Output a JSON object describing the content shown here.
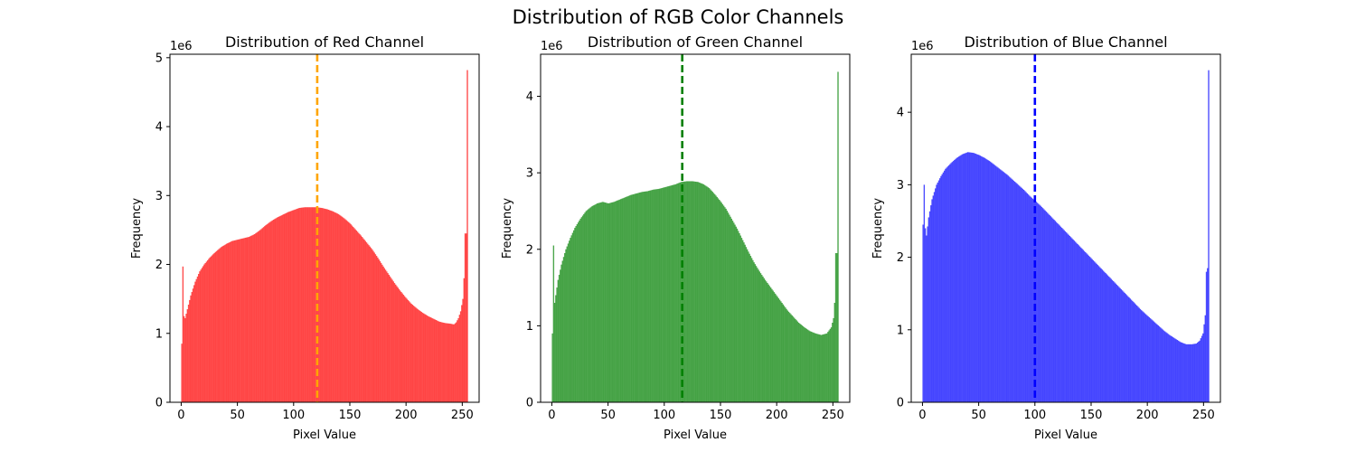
{
  "suptitle": "Distribution of RGB Color Channels",
  "chart_data": [
    {
      "type": "bar",
      "title": "Distribution of Red Channel",
      "xlabel": "Pixel Value",
      "ylabel": "Frequency",
      "y_scale_label": "1e6",
      "color": "#ff0000",
      "bar_alpha": 0.7,
      "bins": 256,
      "xlim": [
        -10,
        265
      ],
      "ylim": [
        0,
        5.05
      ],
      "xticks": [
        0,
        50,
        100,
        150,
        200,
        250
      ],
      "yticks": [
        0,
        1,
        2,
        3,
        4,
        5
      ],
      "mean_line": {
        "x": 121,
        "color": "#ffa500"
      },
      "control_points": [
        [
          0,
          0.85
        ],
        [
          1,
          1.97
        ],
        [
          2,
          1.25
        ],
        [
          3,
          1.22
        ],
        [
          5,
          1.35
        ],
        [
          8,
          1.55
        ],
        [
          12,
          1.75
        ],
        [
          16,
          1.9
        ],
        [
          20,
          2.0
        ],
        [
          25,
          2.1
        ],
        [
          30,
          2.18
        ],
        [
          35,
          2.25
        ],
        [
          40,
          2.3
        ],
        [
          45,
          2.34
        ],
        [
          50,
          2.36
        ],
        [
          55,
          2.38
        ],
        [
          60,
          2.4
        ],
        [
          65,
          2.44
        ],
        [
          70,
          2.5
        ],
        [
          75,
          2.57
        ],
        [
          80,
          2.63
        ],
        [
          85,
          2.68
        ],
        [
          90,
          2.72
        ],
        [
          95,
          2.76
        ],
        [
          100,
          2.79
        ],
        [
          105,
          2.82
        ],
        [
          110,
          2.83
        ],
        [
          115,
          2.83
        ],
        [
          120,
          2.83
        ],
        [
          125,
          2.82
        ],
        [
          130,
          2.8
        ],
        [
          135,
          2.77
        ],
        [
          140,
          2.73
        ],
        [
          145,
          2.67
        ],
        [
          150,
          2.6
        ],
        [
          155,
          2.51
        ],
        [
          160,
          2.42
        ],
        [
          165,
          2.32
        ],
        [
          170,
          2.22
        ],
        [
          175,
          2.1
        ],
        [
          180,
          1.97
        ],
        [
          185,
          1.85
        ],
        [
          190,
          1.73
        ],
        [
          195,
          1.62
        ],
        [
          200,
          1.52
        ],
        [
          205,
          1.43
        ],
        [
          210,
          1.36
        ],
        [
          215,
          1.3
        ],
        [
          220,
          1.25
        ],
        [
          225,
          1.21
        ],
        [
          230,
          1.17
        ],
        [
          235,
          1.15
        ],
        [
          240,
          1.14
        ],
        [
          243,
          1.13
        ],
        [
          245,
          1.16
        ],
        [
          247,
          1.22
        ],
        [
          249,
          1.32
        ],
        [
          251,
          1.5
        ],
        [
          252,
          1.8
        ],
        [
          253,
          2.45
        ],
        [
          254,
          2.45
        ],
        [
          255,
          4.82
        ]
      ]
    },
    {
      "type": "bar",
      "title": "Distribution of Green Channel",
      "xlabel": "Pixel Value",
      "ylabel": "Frequency",
      "y_scale_label": "1e6",
      "color": "#008000",
      "bar_alpha": 0.7,
      "bins": 256,
      "xlim": [
        -10,
        265
      ],
      "ylim": [
        0,
        4.55
      ],
      "xticks": [
        0,
        50,
        100,
        150,
        200,
        250
      ],
      "yticks": [
        0,
        1,
        2,
        3,
        4
      ],
      "mean_line": {
        "x": 116,
        "color": "#008000"
      },
      "control_points": [
        [
          0,
          0.9
        ],
        [
          1,
          2.05
        ],
        [
          2,
          1.3
        ],
        [
          3,
          1.4
        ],
        [
          5,
          1.6
        ],
        [
          8,
          1.8
        ],
        [
          12,
          2.0
        ],
        [
          16,
          2.15
        ],
        [
          20,
          2.28
        ],
        [
          25,
          2.4
        ],
        [
          30,
          2.5
        ],
        [
          35,
          2.56
        ],
        [
          40,
          2.6
        ],
        [
          45,
          2.62
        ],
        [
          50,
          2.6
        ],
        [
          55,
          2.62
        ],
        [
          60,
          2.65
        ],
        [
          65,
          2.68
        ],
        [
          70,
          2.71
        ],
        [
          75,
          2.73
        ],
        [
          80,
          2.75
        ],
        [
          85,
          2.76
        ],
        [
          90,
          2.78
        ],
        [
          95,
          2.79
        ],
        [
          100,
          2.81
        ],
        [
          105,
          2.83
        ],
        [
          110,
          2.85
        ],
        [
          115,
          2.88
        ],
        [
          120,
          2.89
        ],
        [
          125,
          2.89
        ],
        [
          130,
          2.88
        ],
        [
          135,
          2.85
        ],
        [
          140,
          2.8
        ],
        [
          145,
          2.72
        ],
        [
          150,
          2.63
        ],
        [
          155,
          2.53
        ],
        [
          160,
          2.4
        ],
        [
          165,
          2.27
        ],
        [
          170,
          2.12
        ],
        [
          175,
          1.97
        ],
        [
          180,
          1.83
        ],
        [
          185,
          1.71
        ],
        [
          190,
          1.6
        ],
        [
          195,
          1.5
        ],
        [
          200,
          1.4
        ],
        [
          205,
          1.3
        ],
        [
          210,
          1.2
        ],
        [
          215,
          1.12
        ],
        [
          220,
          1.04
        ],
        [
          225,
          0.98
        ],
        [
          230,
          0.93
        ],
        [
          235,
          0.9
        ],
        [
          240,
          0.88
        ],
        [
          245,
          0.9
        ],
        [
          249,
          0.98
        ],
        [
          251,
          1.1
        ],
        [
          252,
          1.3
        ],
        [
          253,
          1.95
        ],
        [
          254,
          1.95
        ],
        [
          255,
          4.32
        ]
      ]
    },
    {
      "type": "bar",
      "title": "Distribution of Blue Channel",
      "xlabel": "Pixel Value",
      "ylabel": "Frequency",
      "y_scale_label": "1e6",
      "color": "#0000ff",
      "bar_alpha": 0.7,
      "bins": 256,
      "xlim": [
        -10,
        265
      ],
      "ylim": [
        0,
        4.8
      ],
      "xticks": [
        0,
        50,
        100,
        150,
        200,
        250
      ],
      "yticks": [
        0,
        1,
        2,
        3,
        4
      ],
      "mean_line": {
        "x": 100,
        "color": "#0000ff"
      },
      "control_points": [
        [
          0,
          2.45
        ],
        [
          1,
          3.0
        ],
        [
          2,
          2.4
        ],
        [
          3,
          2.3
        ],
        [
          5,
          2.55
        ],
        [
          8,
          2.8
        ],
        [
          12,
          3.0
        ],
        [
          16,
          3.12
        ],
        [
          20,
          3.22
        ],
        [
          25,
          3.3
        ],
        [
          30,
          3.37
        ],
        [
          35,
          3.42
        ],
        [
          40,
          3.45
        ],
        [
          45,
          3.44
        ],
        [
          50,
          3.41
        ],
        [
          55,
          3.37
        ],
        [
          60,
          3.32
        ],
        [
          65,
          3.26
        ],
        [
          70,
          3.2
        ],
        [
          75,
          3.14
        ],
        [
          80,
          3.07
        ],
        [
          85,
          3.0
        ],
        [
          90,
          2.93
        ],
        [
          95,
          2.85
        ],
        [
          100,
          2.78
        ],
        [
          105,
          2.71
        ],
        [
          110,
          2.63
        ],
        [
          115,
          2.55
        ],
        [
          120,
          2.47
        ],
        [
          125,
          2.39
        ],
        [
          130,
          2.31
        ],
        [
          135,
          2.23
        ],
        [
          140,
          2.15
        ],
        [
          145,
          2.07
        ],
        [
          150,
          1.99
        ],
        [
          155,
          1.91
        ],
        [
          160,
          1.83
        ],
        [
          165,
          1.75
        ],
        [
          170,
          1.67
        ],
        [
          175,
          1.59
        ],
        [
          180,
          1.51
        ],
        [
          185,
          1.43
        ],
        [
          190,
          1.35
        ],
        [
          195,
          1.27
        ],
        [
          200,
          1.2
        ],
        [
          205,
          1.13
        ],
        [
          210,
          1.06
        ],
        [
          215,
          0.99
        ],
        [
          220,
          0.93
        ],
        [
          225,
          0.88
        ],
        [
          230,
          0.83
        ],
        [
          235,
          0.8
        ],
        [
          240,
          0.8
        ],
        [
          244,
          0.81
        ],
        [
          247,
          0.85
        ],
        [
          250,
          0.95
        ],
        [
          252,
          1.2
        ],
        [
          253,
          1.8
        ],
        [
          254,
          1.85
        ],
        [
          255,
          4.58
        ]
      ]
    }
  ]
}
